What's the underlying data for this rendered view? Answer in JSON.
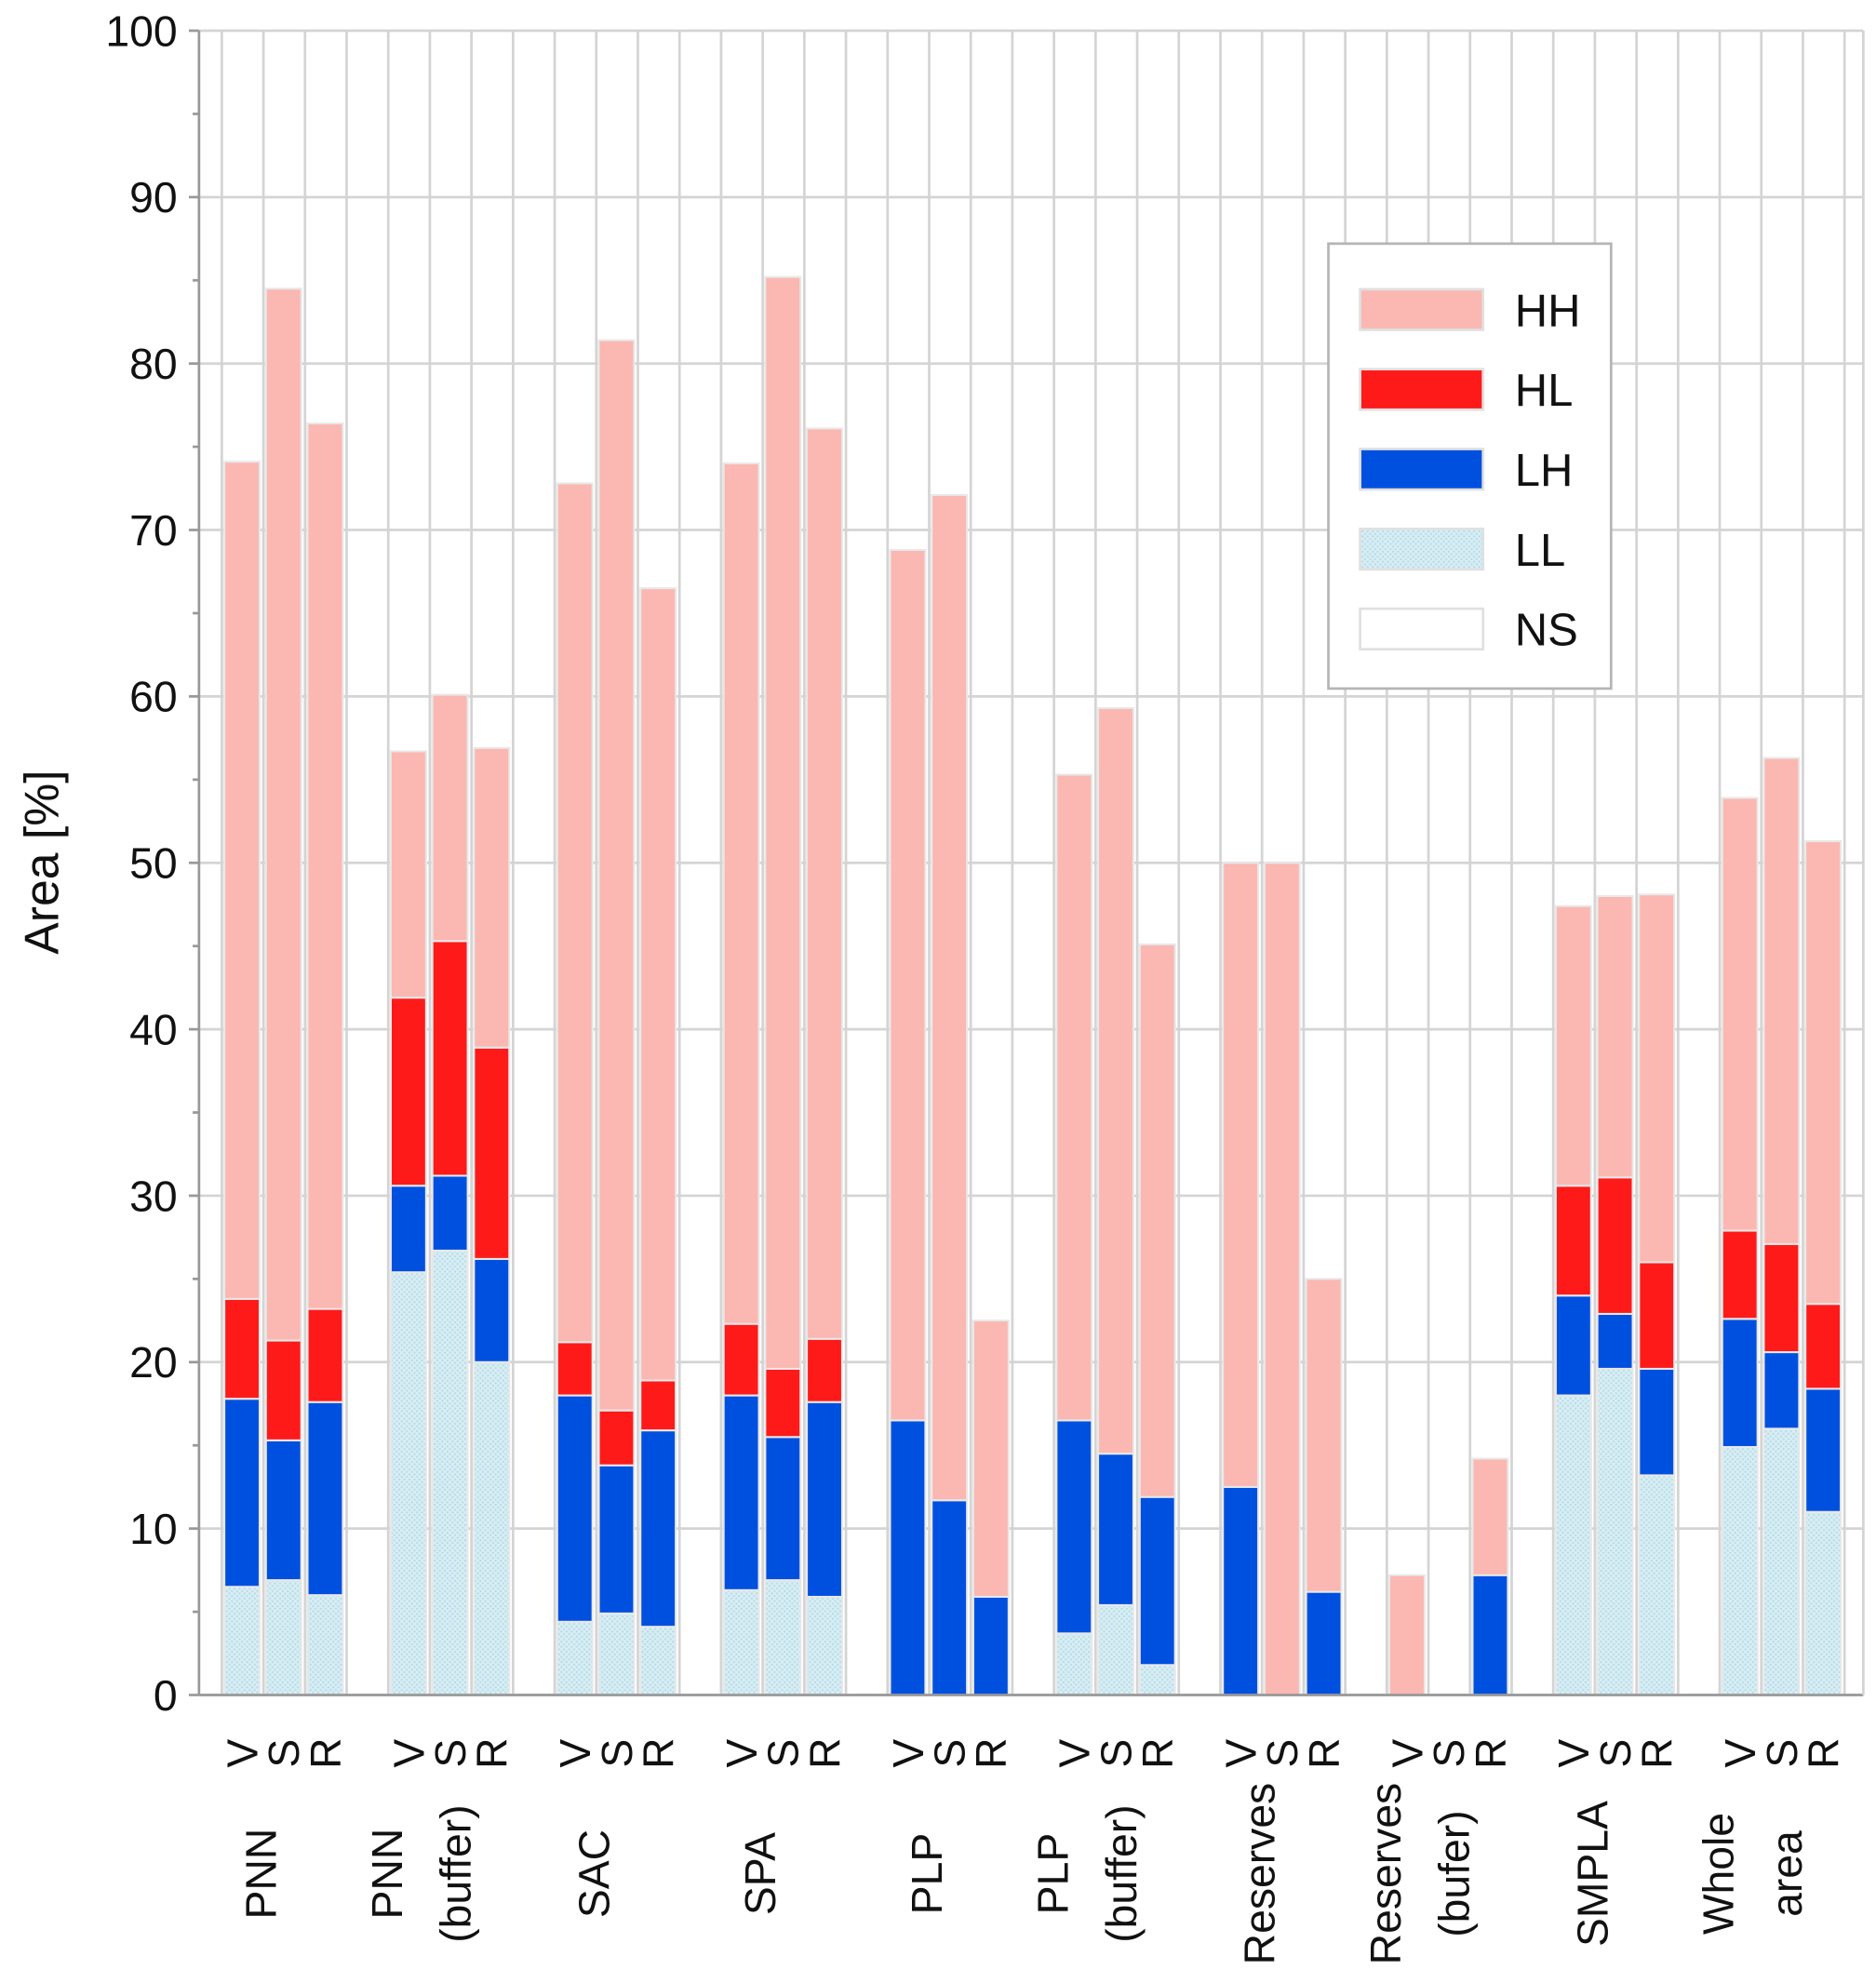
{
  "chart_data": {
    "type": "bar",
    "stacked": true,
    "ylabel": "Area [%]",
    "ylim": [
      0,
      100
    ],
    "yticks": [
      "0",
      "10",
      "20",
      "30",
      "40",
      "50",
      "60",
      "70",
      "80",
      "90",
      "100"
    ],
    "grid": true,
    "legend_position": "top-right",
    "series_order": [
      "LL",
      "LH",
      "HL",
      "HH"
    ],
    "legend": [
      {
        "name": "HH",
        "color": "#fbb7b1"
      },
      {
        "name": "HL",
        "color": "#ff1a1a"
      },
      {
        "name": "LH",
        "color": "#0050e0"
      },
      {
        "name": "LL",
        "color": "#cde9f1"
      },
      {
        "name": "NS",
        "color": "#ffffff"
      }
    ],
    "groups": [
      {
        "label": [
          "PNN"
        ],
        "bars": [
          {
            "label": "V",
            "LL": 6.5,
            "LH": 11.3,
            "HL": 6.0,
            "HH": 50.3
          },
          {
            "label": "S",
            "LL": 6.9,
            "LH": 8.4,
            "HL": 6.0,
            "HH": 63.2
          },
          {
            "label": "R",
            "LL": 6.0,
            "LH": 11.6,
            "HL": 5.6,
            "HH": 53.2
          }
        ]
      },
      {
        "label": [
          "PNN",
          "(buffer)"
        ],
        "bars": [
          {
            "label": "V",
            "LL": 25.4,
            "LH": 5.2,
            "HL": 11.3,
            "HH": 14.8
          },
          {
            "label": "S",
            "LL": 26.7,
            "LH": 4.5,
            "HL": 14.1,
            "HH": 14.8
          },
          {
            "label": "R",
            "LL": 20.0,
            "LH": 6.2,
            "HL": 12.7,
            "HH": 18.0
          }
        ]
      },
      {
        "label": [
          "SAC"
        ],
        "bars": [
          {
            "label": "V",
            "LL": 4.4,
            "LH": 13.6,
            "HL": 3.2,
            "HH": 51.6
          },
          {
            "label": "S",
            "LL": 4.9,
            "LH": 8.9,
            "HL": 3.3,
            "HH": 64.3
          },
          {
            "label": "R",
            "LL": 4.1,
            "LH": 11.8,
            "HL": 3.0,
            "HH": 47.6
          }
        ]
      },
      {
        "label": [
          "SPA"
        ],
        "bars": [
          {
            "label": "V",
            "LL": 6.3,
            "LH": 11.7,
            "HL": 4.3,
            "HH": 51.7
          },
          {
            "label": "S",
            "LL": 6.9,
            "LH": 8.6,
            "HL": 4.1,
            "HH": 65.6
          },
          {
            "label": "R",
            "LL": 5.9,
            "LH": 11.7,
            "HL": 3.8,
            "HH": 54.7
          }
        ]
      },
      {
        "label": [
          "PLP"
        ],
        "bars": [
          {
            "label": "V",
            "LL": 0,
            "LH": 16.5,
            "HL": 0,
            "HH": 52.3
          },
          {
            "label": "S",
            "LL": 0,
            "LH": 11.7,
            "HL": 0,
            "HH": 60.4
          },
          {
            "label": "R",
            "LL": 0,
            "LH": 5.9,
            "HL": 0,
            "HH": 16.6
          }
        ]
      },
      {
        "label": [
          "PLP",
          "(buffer)"
        ],
        "bars": [
          {
            "label": "V",
            "LL": 3.7,
            "LH": 12.8,
            "HL": 0,
            "HH": 38.8
          },
          {
            "label": "S",
            "LL": 5.4,
            "LH": 9.1,
            "HL": 0,
            "HH": 44.8
          },
          {
            "label": "R",
            "LL": 1.8,
            "LH": 10.1,
            "HL": 0,
            "HH": 33.2
          }
        ]
      },
      {
        "label": [
          "Reserves"
        ],
        "bars": [
          {
            "label": "V",
            "LL": 0,
            "LH": 12.5,
            "HL": 0,
            "HH": 37.5
          },
          {
            "label": "S",
            "LL": 0,
            "LH": 0,
            "HL": 0,
            "HH": 50.0
          },
          {
            "label": "R",
            "LL": 0,
            "LH": 6.2,
            "HL": 0,
            "HH": 18.8
          }
        ]
      },
      {
        "label": [
          "Reserves",
          "(bufer)"
        ],
        "bars": [
          {
            "label": "V",
            "LL": 0,
            "LH": 0,
            "HL": 0,
            "HH": 7.2
          },
          {
            "label": "S",
            "LL": 0,
            "LH": 0,
            "HL": 0,
            "HH": 0
          },
          {
            "label": "R",
            "LL": 0,
            "LH": 7.2,
            "HL": 0,
            "HH": 7.0
          }
        ]
      },
      {
        "label": [
          "SMPLA"
        ],
        "bars": [
          {
            "label": "V",
            "LL": 18.0,
            "LH": 6.0,
            "HL": 6.6,
            "HH": 16.8
          },
          {
            "label": "S",
            "LL": 19.6,
            "LH": 3.3,
            "HL": 8.2,
            "HH": 16.9
          },
          {
            "label": "R",
            "LL": 13.2,
            "LH": 6.4,
            "HL": 6.4,
            "HH": 22.1
          }
        ]
      },
      {
        "label": [
          "Whole",
          "area"
        ],
        "bars": [
          {
            "label": "V",
            "LL": 14.9,
            "LH": 7.7,
            "HL": 5.3,
            "HH": 26.0
          },
          {
            "label": "S",
            "LL": 16.0,
            "LH": 4.6,
            "HL": 6.5,
            "HH": 29.2
          },
          {
            "label": "R",
            "LL": 11.0,
            "LH": 7.4,
            "HL": 5.1,
            "HH": 27.8
          }
        ]
      }
    ]
  }
}
